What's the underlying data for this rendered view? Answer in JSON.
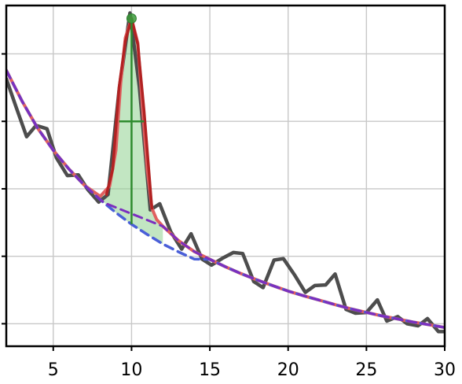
{
  "chart_data": {
    "type": "line",
    "title": "",
    "xlabel": "",
    "ylabel": "",
    "xlim": [
      2,
      30
    ],
    "ylim": [
      0,
      1
    ],
    "grid": true,
    "x_ticks": [
      5,
      10,
      15,
      20,
      25,
      30
    ],
    "x_tick_labels": [
      "5",
      "10",
      "15",
      "20",
      "25",
      "30"
    ],
    "y_gridlines": [
      0.066,
      0.264,
      0.462,
      0.66,
      0.858
    ],
    "series": [
      {
        "role": "noisy-observed",
        "color": "#4d4d4d",
        "style": "solid",
        "x": [
          2.0,
          2.6,
          3.3,
          3.9,
          4.6,
          5.2,
          5.9,
          6.6,
          7.2,
          7.9,
          8.5,
          9.2,
          9.9,
          10.5,
          11.2,
          11.8,
          12.5,
          13.2,
          13.8,
          14.5,
          15.1,
          15.8,
          16.5,
          17.1,
          17.8,
          18.4,
          19.1,
          19.7,
          20.4,
          21.1,
          21.7,
          22.4,
          23.0,
          23.7,
          24.3,
          25.0,
          25.7,
          26.3,
          27.0,
          27.6,
          28.3,
          28.9,
          29.6,
          30.0
        ],
        "y": [
          0.785,
          0.705,
          0.615,
          0.648,
          0.638,
          0.553,
          0.501,
          0.503,
          0.46,
          0.423,
          0.445,
          0.75,
          0.978,
          0.76,
          0.4,
          0.418,
          0.336,
          0.285,
          0.33,
          0.256,
          0.238,
          0.258,
          0.275,
          0.272,
          0.19,
          0.172,
          0.253,
          0.257,
          0.21,
          0.158,
          0.178,
          0.18,
          0.212,
          0.108,
          0.097,
          0.099,
          0.136,
          0.074,
          0.087,
          0.066,
          0.06,
          0.081,
          0.043,
          0.043
        ]
      },
      {
        "role": "fitted-total",
        "color": "#e06060",
        "style": "solid",
        "x": [
          2.0,
          3.0,
          4.0,
          5.0,
          6.0,
          7.0,
          8.0,
          8.6,
          9.0,
          9.3,
          9.6,
          10.0,
          10.4,
          10.7,
          11.0,
          11.3,
          11.6,
          12.0,
          13.0,
          14.0,
          15.0,
          16.0,
          17.0,
          18.0,
          19.0,
          20.0,
          21.0,
          22.0,
          23.0,
          24.0,
          25.0,
          26.0,
          27.0,
          28.0,
          29.0,
          30.0
        ],
        "y": [
          0.81,
          0.72,
          0.64,
          0.575,
          0.52,
          0.472,
          0.44,
          0.47,
          0.575,
          0.77,
          0.905,
          0.962,
          0.89,
          0.7,
          0.52,
          0.405,
          0.372,
          0.352,
          0.31,
          0.278,
          0.255,
          0.233,
          0.213,
          0.195,
          0.178,
          0.162,
          0.148,
          0.135,
          0.122,
          0.11,
          0.099,
          0.089,
          0.08,
          0.071,
          0.063,
          0.055
        ]
      },
      {
        "role": "peak-component",
        "color": "#b22222",
        "style": "solid",
        "x": [
          8.4,
          8.8,
          9.2,
          9.6,
          10.0,
          10.4,
          10.8,
          11.3
        ],
        "y": [
          0.445,
          0.52,
          0.76,
          0.895,
          0.962,
          0.885,
          0.69,
          0.405
        ]
      },
      {
        "role": "background",
        "color": "#4a5fd8",
        "style": "dashed",
        "x": [
          2.0,
          3.0,
          4.0,
          5.0,
          6.0,
          7.0,
          8.0,
          9.0,
          10.0,
          11.0,
          12.0,
          13.0,
          14.0,
          15.0,
          16.0,
          17.0,
          18.0,
          19.0,
          20.0,
          21.0,
          22.0,
          23.0,
          24.0,
          25.0,
          26.0,
          27.0,
          28.0,
          29.0,
          30.0
        ],
        "y": [
          0.81,
          0.72,
          0.64,
          0.575,
          0.52,
          0.472,
          0.43,
          0.392,
          0.358,
          0.328,
          0.3,
          0.277,
          0.256,
          0.255,
          0.233,
          0.213,
          0.195,
          0.178,
          0.162,
          0.148,
          0.135,
          0.122,
          0.11,
          0.099,
          0.089,
          0.08,
          0.071,
          0.063,
          0.055
        ]
      },
      {
        "role": "background-overlay",
        "color": "#7b2fbf",
        "style": "dashed",
        "x": [
          2.0,
          3.0,
          4.0,
          5.0,
          6.0,
          7.0,
          8.0,
          8.3,
          12.0,
          13.0,
          14.0,
          15.0,
          16.0,
          17.0,
          18.0,
          19.0,
          20.0,
          21.0,
          22.0,
          23.0,
          24.0,
          25.0,
          26.0,
          27.0,
          28.0,
          29.0,
          30.0
        ],
        "y": [
          0.81,
          0.72,
          0.64,
          0.575,
          0.52,
          0.472,
          0.43,
          0.42,
          0.352,
          0.31,
          0.278,
          0.255,
          0.233,
          0.213,
          0.195,
          0.178,
          0.162,
          0.148,
          0.135,
          0.122,
          0.11,
          0.099,
          0.089,
          0.08,
          0.071,
          0.063,
          0.055
        ]
      }
    ],
    "peak_fill": {
      "color": "#8fd18f",
      "x": [
        8.0,
        8.6,
        9.0,
        9.3,
        9.6,
        10.0,
        10.4,
        10.7,
        11.0,
        11.3,
        11.6,
        12.0
      ],
      "upper": [
        0.44,
        0.47,
        0.575,
        0.77,
        0.905,
        0.962,
        0.89,
        0.7,
        0.52,
        0.405,
        0.372,
        0.352
      ],
      "lower": [
        0.43,
        0.41,
        0.392,
        0.381,
        0.371,
        0.358,
        0.346,
        0.337,
        0.328,
        0.319,
        0.311,
        0.3
      ]
    },
    "peak_marker": {
      "x": 10.0,
      "y": 0.962,
      "color": "#3a9a3a"
    },
    "peak_height_line": {
      "x": 10.0,
      "y_from": 0.358,
      "y_to": 0.962,
      "color": "#2e8b2e"
    },
    "fwhm_line": {
      "x_from": 9.2,
      "x_to": 10.8,
      "y": 0.66,
      "color": "#2e8b2e"
    }
  }
}
